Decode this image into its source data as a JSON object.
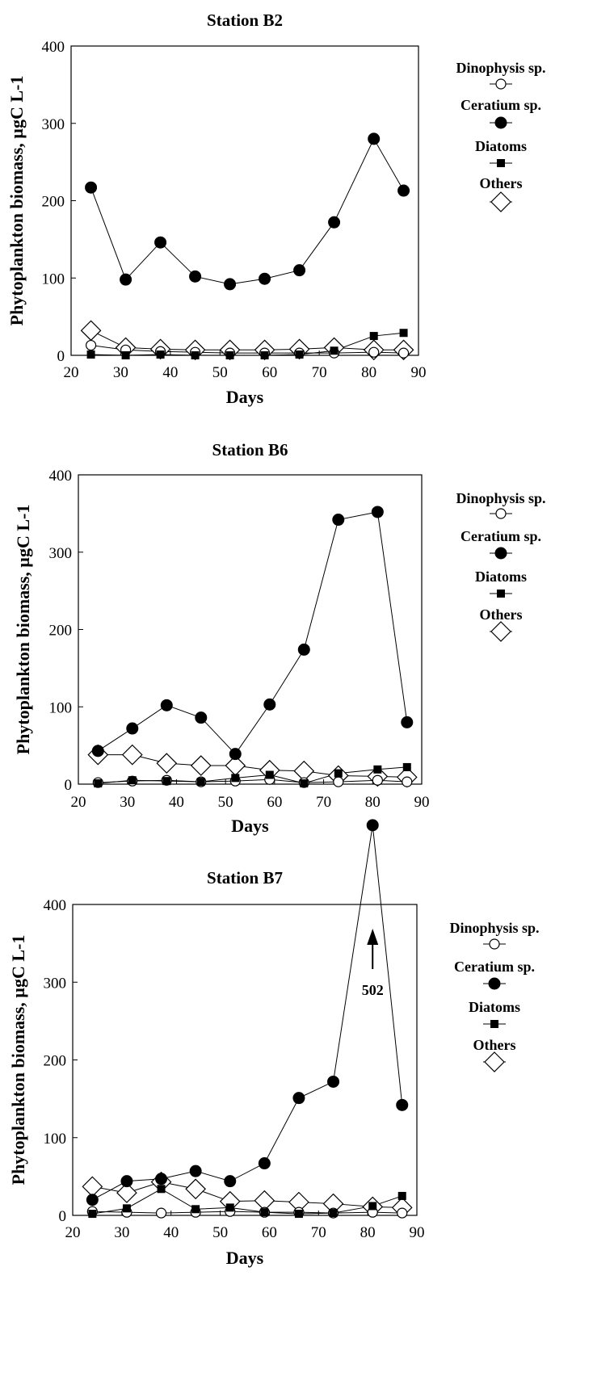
{
  "chart_data": [
    {
      "type": "line",
      "title": "Station B2",
      "xlabel": "Days",
      "ylabel": "Phytoplankton biomass, µgC L-1",
      "xlim": [
        20,
        90
      ],
      "ylim": [
        0,
        400
      ],
      "xticks": [
        20,
        30,
        40,
        50,
        60,
        70,
        80,
        90
      ],
      "yticks": [
        0,
        100,
        200,
        300,
        400
      ],
      "grid": false,
      "legend_position": "right",
      "x": [
        24,
        31,
        38,
        45,
        52,
        59,
        66,
        73,
        81,
        87
      ],
      "series": [
        {
          "name": "Dinophysis sp.",
          "marker": "open-circle",
          "values": [
            13,
            7,
            5,
            4,
            3,
            3,
            3,
            3,
            4,
            3
          ]
        },
        {
          "name": "Ceratium sp.",
          "marker": "filled-circle",
          "values": [
            217,
            98,
            146,
            102,
            92,
            99,
            110,
            172,
            280,
            213
          ]
        },
        {
          "name": "Diatoms",
          "marker": "filled-square",
          "values": [
            1,
            0,
            1,
            0,
            0,
            0,
            1,
            6,
            25,
            29
          ]
        },
        {
          "name": "Others",
          "marker": "open-diamond",
          "values": [
            32,
            10,
            8,
            7,
            7,
            7,
            8,
            10,
            7,
            7
          ]
        }
      ],
      "annotations": []
    },
    {
      "type": "line",
      "title": "Station B6",
      "xlabel": "Days",
      "ylabel": "Phytoplankton biomass, µgC L-1",
      "xlim": [
        20,
        90
      ],
      "ylim": [
        0,
        400
      ],
      "xticks": [
        20,
        30,
        40,
        50,
        60,
        70,
        80,
        90
      ],
      "yticks": [
        0,
        100,
        200,
        300,
        400
      ],
      "grid": false,
      "legend_position": "right",
      "x": [
        24,
        31,
        38,
        45,
        52,
        59,
        66,
        73,
        81,
        87
      ],
      "series": [
        {
          "name": "Dinophysis sp.",
          "marker": "open-circle",
          "values": [
            2,
            4,
            5,
            3,
            4,
            6,
            2,
            3,
            5,
            3
          ]
        },
        {
          "name": "Ceratium sp.",
          "marker": "filled-circle",
          "values": [
            43,
            72,
            102,
            86,
            39,
            103,
            174,
            342,
            352,
            80
          ]
        },
        {
          "name": "Diatoms",
          "marker": "filled-square",
          "values": [
            1,
            5,
            4,
            3,
            8,
            12,
            1,
            14,
            19,
            22
          ]
        },
        {
          "name": "Others",
          "marker": "open-diamond",
          "values": [
            38,
            38,
            27,
            24,
            24,
            18,
            17,
            11,
            10,
            9
          ]
        }
      ],
      "annotations": []
    },
    {
      "type": "line",
      "title": "Station B7",
      "xlabel": "Days",
      "ylabel": "Phytoplankton biomass, µgC L-1",
      "xlim": [
        20,
        90
      ],
      "ylim": [
        0,
        400
      ],
      "xticks": [
        20,
        30,
        40,
        50,
        60,
        70,
        80,
        90
      ],
      "yticks": [
        0,
        100,
        200,
        300,
        400
      ],
      "grid": false,
      "legend_position": "right",
      "x": [
        24,
        31,
        38,
        45,
        52,
        59,
        66,
        73,
        81,
        87
      ],
      "series": [
        {
          "name": "Dinophysis sp.",
          "marker": "open-circle",
          "values": [
            5,
            4,
            3,
            4,
            5,
            4,
            4,
            3,
            4,
            3
          ]
        },
        {
          "name": "Ceratium sp.",
          "marker": "filled-circle",
          "values": [
            20,
            44,
            47,
            57,
            44,
            67,
            151,
            172,
            502,
            142
          ]
        },
        {
          "name": "Diatoms",
          "marker": "filled-square",
          "values": [
            2,
            9,
            34,
            8,
            10,
            4,
            2,
            3,
            12,
            25
          ]
        },
        {
          "name": "Others",
          "marker": "open-diamond",
          "values": [
            37,
            29,
            43,
            34,
            18,
            19,
            17,
            15,
            11,
            10
          ]
        }
      ],
      "annotations": [
        {
          "text": "502",
          "x": 81,
          "y": 502,
          "arrow": "up"
        }
      ]
    }
  ]
}
